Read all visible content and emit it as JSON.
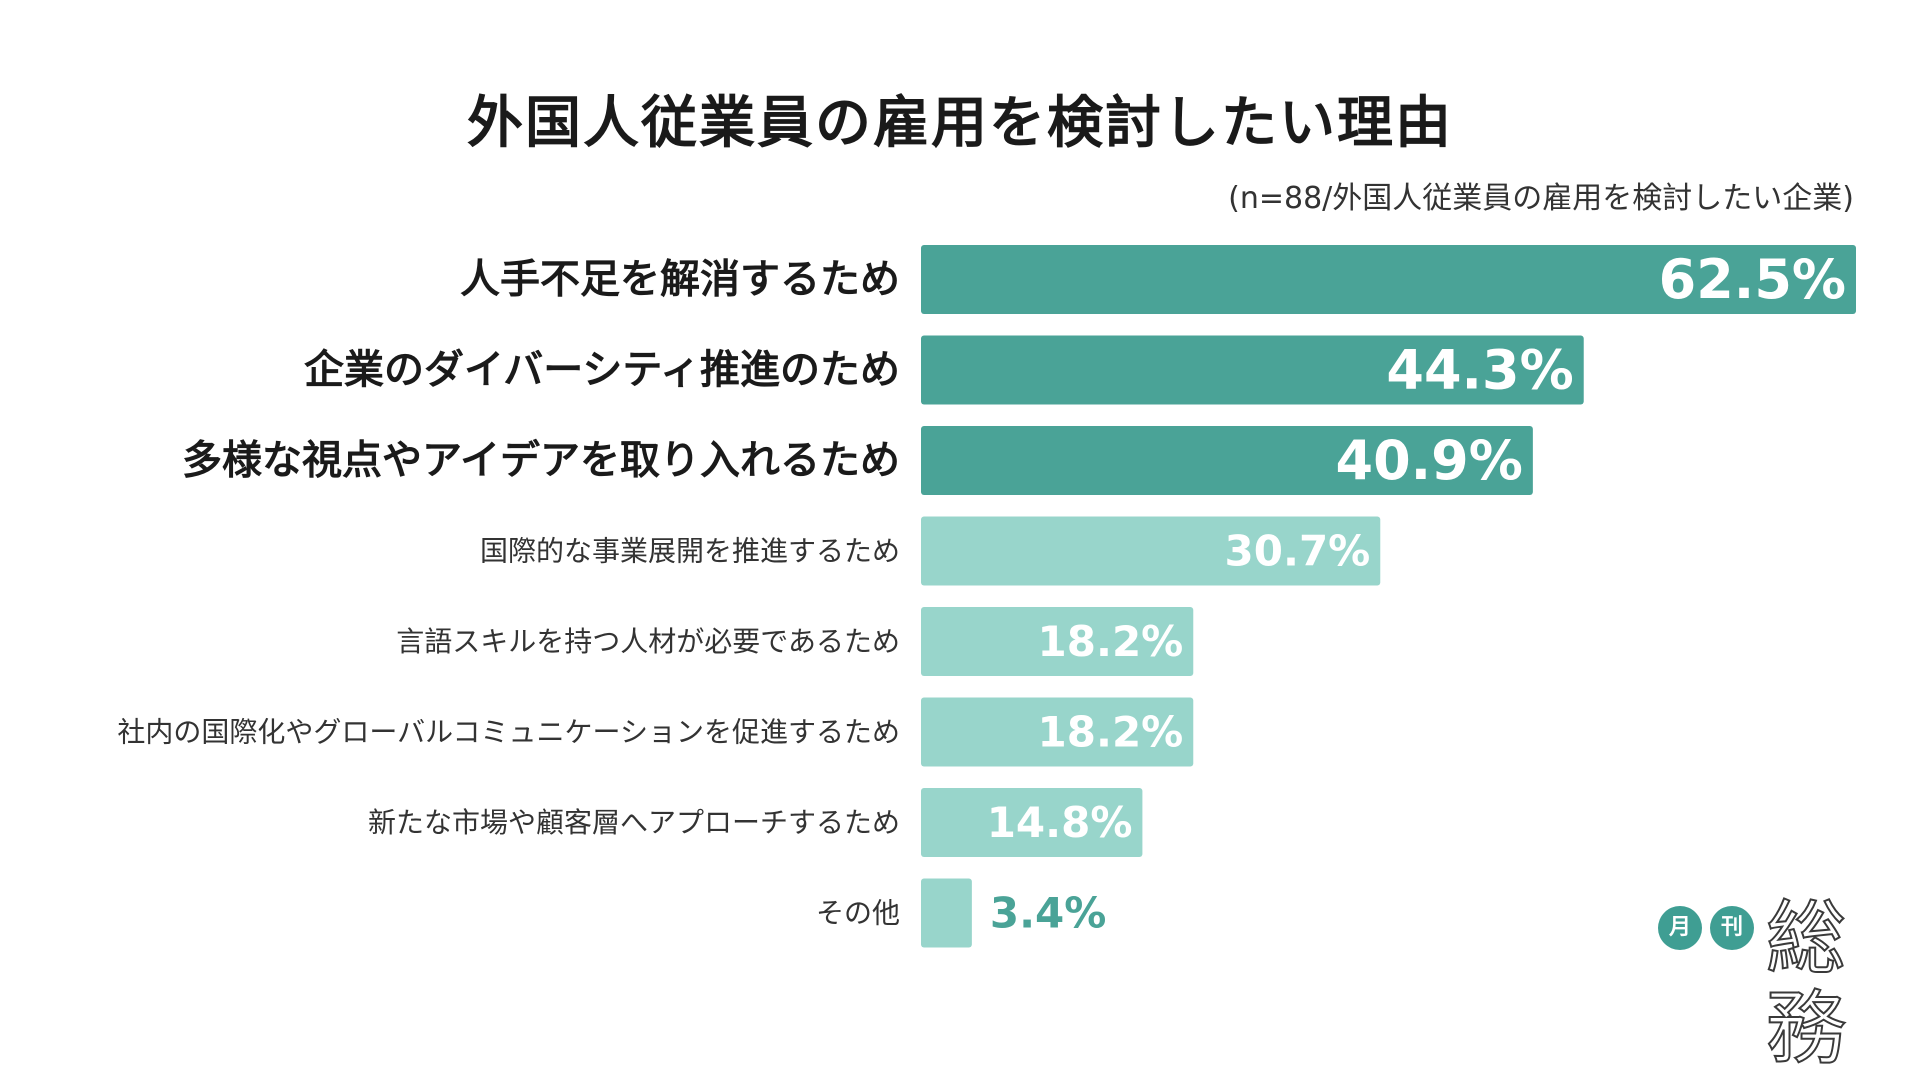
{
  "chart_data": {
    "type": "bar",
    "orientation": "horizontal",
    "title": "外国人従業員の雇用を検討したい理由",
    "subtitle": "(n=88/外国人従業員の雇用を検討したい企業)",
    "categories": [
      "人手不足を解消するため",
      "企業のダイバーシティ推進のため",
      "多様な視点やアイデアを取り入れるため",
      "国際的な事業展開を推進するため",
      "言語スキルを持つ人材が必要であるため",
      "社内の国際化やグローバルコミュニケーションを促進するため",
      "新たな市場や顧客層へアプローチするため",
      "その他"
    ],
    "values": [
      62.5,
      44.3,
      40.9,
      30.7,
      18.2,
      18.2,
      14.8,
      3.4
    ],
    "value_labels": [
      "62.5%",
      "44.3%",
      "40.9%",
      "30.7%",
      "18.2%",
      "18.2%",
      "14.8%",
      "3.4%"
    ],
    "highlighted": [
      true,
      true,
      true,
      false,
      false,
      false,
      false,
      false
    ],
    "unit": "%",
    "xlim": [
      0,
      62.5
    ],
    "grid": false,
    "legend": "none"
  },
  "colors": {
    "highlight_bar": "#4aa397",
    "normal_bar": "#98d5cb",
    "inside_label": "#ffffff",
    "outside_label": "#4aa397",
    "text": "#1a1a1a"
  },
  "logo": {
    "circle1": "月",
    "circle2": "刊",
    "word": "総務"
  }
}
